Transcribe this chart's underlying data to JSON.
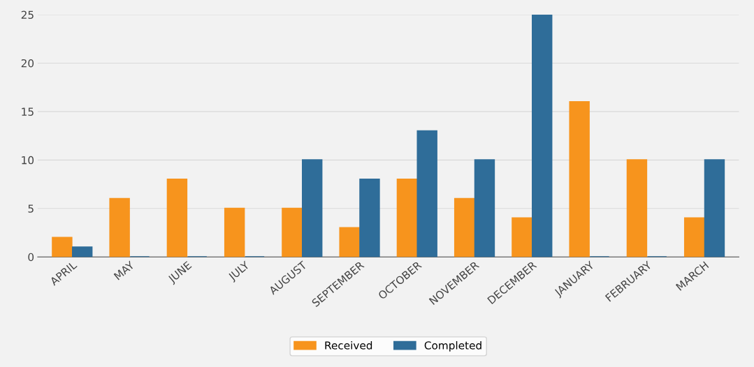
{
  "chart_data": {
    "type": "bar",
    "categories": [
      "APRIL",
      "MAY",
      "JUNE",
      "JULY",
      "AUGUST",
      "SEPTEMBER",
      "OCTOBER",
      "NOVEMBER",
      "DECEMBER",
      "JANUARY",
      "FEBRUARY",
      "MARCH"
    ],
    "series": [
      {
        "name": "Received",
        "color": "#f7941d",
        "values": [
          2,
          6,
          8,
          5,
          5,
          3,
          8,
          6,
          4,
          16,
          10,
          4
        ]
      },
      {
        "name": "Completed",
        "color": "#2f6d99",
        "values": [
          1,
          0,
          0,
          0,
          10,
          8,
          13,
          10,
          25,
          0,
          0,
          10
        ]
      }
    ],
    "ylim": [
      0,
      25
    ],
    "yticks": [
      0,
      5,
      10,
      15,
      20,
      25
    ],
    "grid": "y",
    "legend": "bottom"
  }
}
